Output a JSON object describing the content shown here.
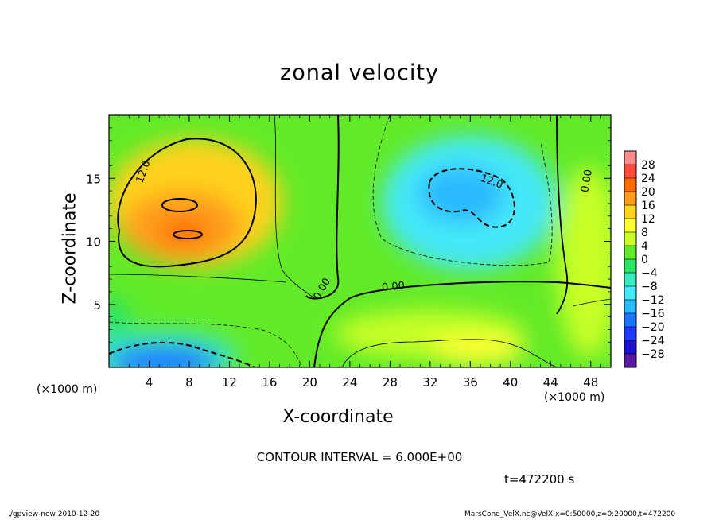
{
  "chart_data": {
    "type": "heatmap",
    "title": "zonal velocity",
    "xlabel": "X-coordinate",
    "ylabel": "Z-coordinate",
    "x_unit": "(×1000 m)",
    "x_unit_right": "(×1000 m)",
    "xlim": [
      0,
      50
    ],
    "ylim": [
      0,
      20
    ],
    "xticks": [
      4,
      8,
      12,
      16,
      20,
      24,
      28,
      32,
      36,
      40,
      44,
      48
    ],
    "yticks": [
      5,
      10,
      15
    ],
    "colorbar": {
      "levels": [
        -28,
        -24,
        -20,
        -16,
        -12,
        -8,
        -4,
        0,
        4,
        8,
        12,
        16,
        20,
        24,
        28
      ],
      "labels": [
        "28",
        "24",
        "20",
        "16",
        "12",
        "8",
        "4",
        "0",
        "−4",
        "−8",
        "−12",
        "−16",
        "−20",
        "−24",
        "−28"
      ],
      "colors": [
        "#ff8a8a",
        "#ff4a3a",
        "#ff6a00",
        "#ff9c1e",
        "#ffd21e",
        "#ffff34",
        "#c8ff28",
        "#62ea28",
        "#2ce264",
        "#3ae8c2",
        "#44e8f8",
        "#2ab8ff",
        "#1a74ff",
        "#1e38ff",
        "#1a10d0",
        "#5a1aa0"
      ]
    },
    "contour_labels": [
      "12.0",
      "12.0",
      "0.00",
      "0.00",
      "0.00"
    ],
    "features": [
      {
        "name": "positive max",
        "x": 8,
        "z": 10.5,
        "value": 16
      },
      {
        "name": "positive core",
        "x": 7,
        "z": 12.5,
        "value": 12
      },
      {
        "name": "negative core",
        "x": 36,
        "z": 13.5,
        "value": -14
      },
      {
        "name": "near-surface negative",
        "x": 7,
        "z": 1,
        "value": -18
      }
    ]
  },
  "contour_interval": "CONTOUR INTERVAL = 6.000E+00",
  "time_label": "t=472200 s",
  "footer": {
    "left": "./gpview-new   2010-12-20",
    "right": "MarsCond_VelX.nc@VelX,x=0:50000,z=0:20000,t=472200"
  }
}
